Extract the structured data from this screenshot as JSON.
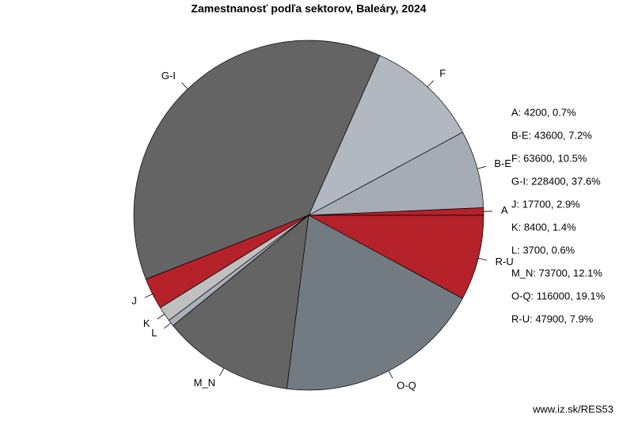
{
  "chart_data": {
    "type": "pie",
    "title": "Zamestnanosť podľa sektorov, Baleáry, 2024",
    "categories": [
      "A",
      "B-E",
      "F",
      "G-I",
      "J",
      "K",
      "L",
      "M_N",
      "O-Q",
      "R-U"
    ],
    "values": [
      4200,
      43600,
      63600,
      228400,
      17700,
      8400,
      3700,
      73700,
      116000,
      47900
    ],
    "value_labels": [
      "A: 4200, 0.7%",
      "B-E: 43600, 7.2%",
      "F: 63600, 10.5%",
      "G-I: 228400, 37.6%",
      "J: 17700, 2.9%",
      "K: 8400, 1.4%",
      "L: 3700, 0.6%",
      "M_N: 73700, 12.1%",
      "O-Q: 116000, 19.1%",
      "R-U: 47900, 7.9%"
    ],
    "colors": [
      "#b5222a",
      "#a5acb5",
      "#b2b8c0",
      "#646464",
      "#b5222a",
      "#c0c0c0",
      "#a9b0ba",
      "#646464",
      "#737b82",
      "#b5222a"
    ],
    "source": "www.iz.sk/RES53"
  }
}
